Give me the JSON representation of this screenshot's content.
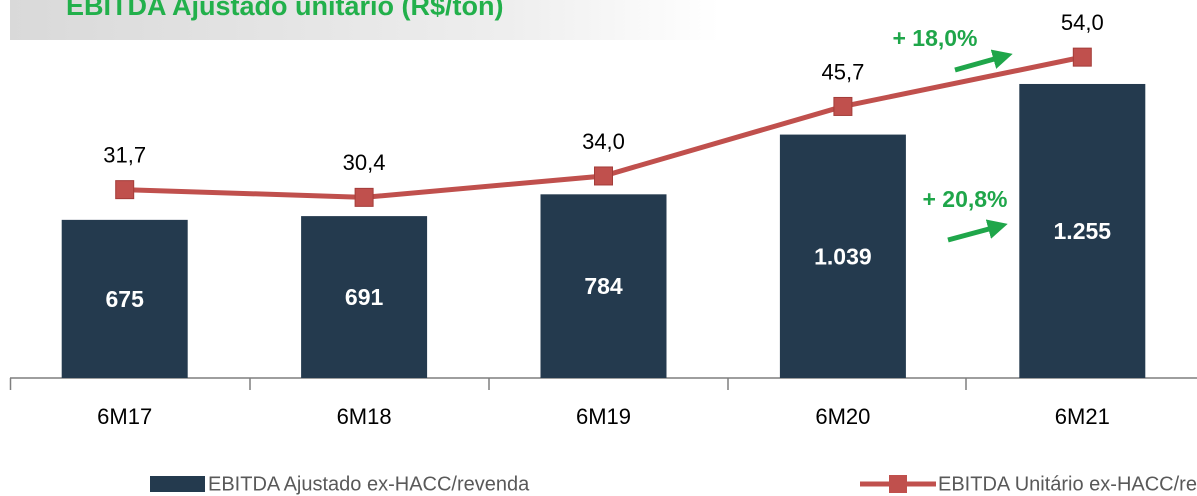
{
  "chart_data": {
    "type": "bar",
    "title": "EBITDA Ajustado unitário (R$/ton)",
    "categories": [
      "6M17",
      "6M18",
      "6M19",
      "6M20",
      "6M21"
    ],
    "series": [
      {
        "name": "EBITDA Ajustado ex-HACC/revenda",
        "type": "bar",
        "color": "#243a4e",
        "axis": "y",
        "values": [
          675,
          691,
          784,
          1039,
          1255
        ],
        "value_labels": [
          "675",
          "691",
          "784",
          "1.039",
          "1.255"
        ]
      },
      {
        "name": "EBITDA Unitário ex-HACC/revenda",
        "type": "line",
        "color": "#c0504d",
        "axis": "y2",
        "values": [
          31.7,
          30.4,
          34.0,
          45.7,
          54.0
        ],
        "value_labels": [
          "31,7",
          "30,4",
          "34,0",
          "45,7",
          "54,0"
        ]
      }
    ],
    "ylim": [
      0,
      1400
    ],
    "y2lim": [
      0,
      55.2
    ],
    "annotations": [
      "+ 18,0%",
      "+ 20,8%"
    ],
    "annotation_color": "#1fa64a",
    "legend": "bottom"
  }
}
